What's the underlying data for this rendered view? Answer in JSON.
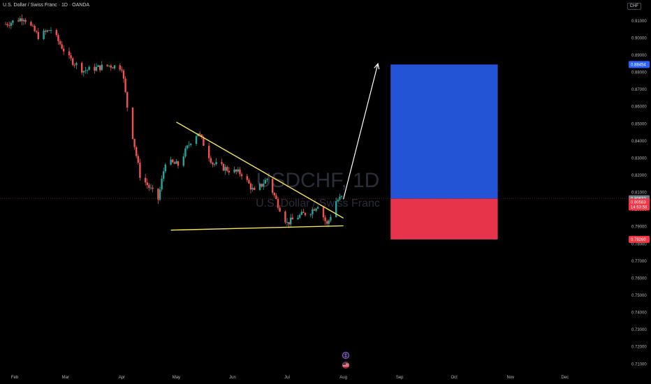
{
  "header": {
    "title": "U.S. Dollar / Swiss Franc · 1D · OANDA",
    "currency": "CHF"
  },
  "watermark": {
    "symbol": "USDCHF, 1D",
    "name": "U.S. Dollar / Swiss Franc"
  },
  "price_tags": {
    "target": "0.88454",
    "current": "0.80632",
    "last": "0.80583",
    "countdown": "14:53:58",
    "stop": "0.78260"
  },
  "colors": {
    "up": "#26a69a",
    "down": "#ef5350",
    "trendline": "#f7e35a",
    "target_zone": "#2454d6",
    "stop_zone": "#e8344a",
    "target_tag": "#2962ff",
    "current_tag": "#787b86",
    "last_tag": "#f23645",
    "stop_tag": "#f23645"
  },
  "chart_data": {
    "type": "candlestick",
    "title": "U.S. Dollar / Swiss Franc · 1D · OANDA",
    "y_unit": "CHF",
    "ylim": [
      0.70483,
      0.91725
    ],
    "y_ticks": [
      "0.91000",
      "0.90000",
      "0.89000",
      "0.88000",
      "0.87000",
      "0.86000",
      "0.85000",
      "0.84000",
      "0.83000",
      "0.82000",
      "0.81000",
      "0.80000",
      "0.79000",
      "0.78000",
      "0.77000",
      "0.76000",
      "0.75000",
      "0.74000",
      "0.73000",
      "0.72000",
      "0.71000"
    ],
    "x_ticks": [
      "Feb",
      "Mar",
      "Apr",
      "May",
      "Jun",
      "Jul",
      "Aug",
      "Sep",
      "Oct",
      "Nov",
      "Dec"
    ],
    "price_path": [
      {
        "date": "2025-01-27",
        "close": 0.908
      },
      {
        "date": "2025-02-06",
        "close": 0.912
      },
      {
        "date": "2025-02-14",
        "close": 0.901
      },
      {
        "date": "2025-02-21",
        "close": 0.905
      },
      {
        "date": "2025-03-03",
        "close": 0.888
      },
      {
        "date": "2025-03-11",
        "close": 0.881
      },
      {
        "date": "2025-03-25",
        "close": 0.884
      },
      {
        "date": "2025-04-01",
        "close": 0.883
      },
      {
        "date": "2025-04-04",
        "close": 0.86
      },
      {
        "date": "2025-04-11",
        "close": 0.82
      },
      {
        "date": "2025-04-21",
        "close": 0.806
      },
      {
        "date": "2025-04-25",
        "close": 0.828
      },
      {
        "date": "2025-05-02",
        "close": 0.826
      },
      {
        "date": "2025-05-09",
        "close": 0.84
      },
      {
        "date": "2025-05-13",
        "close": 0.845
      },
      {
        "date": "2025-05-21",
        "close": 0.827
      },
      {
        "date": "2025-05-30",
        "close": 0.823
      },
      {
        "date": "2025-06-06",
        "close": 0.821
      },
      {
        "date": "2025-06-13",
        "close": 0.81
      },
      {
        "date": "2025-06-20",
        "close": 0.818
      },
      {
        "date": "2025-06-26",
        "close": 0.803
      },
      {
        "date": "2025-07-01",
        "close": 0.792
      },
      {
        "date": "2025-07-07",
        "close": 0.796
      },
      {
        "date": "2025-07-14",
        "close": 0.799
      },
      {
        "date": "2025-07-18",
        "close": 0.803
      },
      {
        "date": "2025-07-23",
        "close": 0.791
      },
      {
        "date": "2025-07-28",
        "close": 0.805
      },
      {
        "date": "2025-07-31",
        "close": 0.807
      }
    ],
    "annotations": {
      "descending_trendline": [
        {
          "date": "2025-05-01",
          "price": 0.851
        },
        {
          "date": "2025-08-01",
          "price": 0.795
        }
      ],
      "support_trendline": [
        {
          "date": "2025-04-28",
          "price": 0.788
        },
        {
          "date": "2025-08-01",
          "price": 0.7905
        }
      ],
      "projection_arrow": [
        {
          "date": "2025-08-01",
          "price": 0.806
        },
        {
          "date": "2025-08-20",
          "price": 0.885
        }
      ],
      "long_position": {
        "entry": 0.80632,
        "target": 0.88454,
        "stop": 0.7826,
        "from": "2025-08-27",
        "to": "2025-10-25"
      }
    }
  }
}
